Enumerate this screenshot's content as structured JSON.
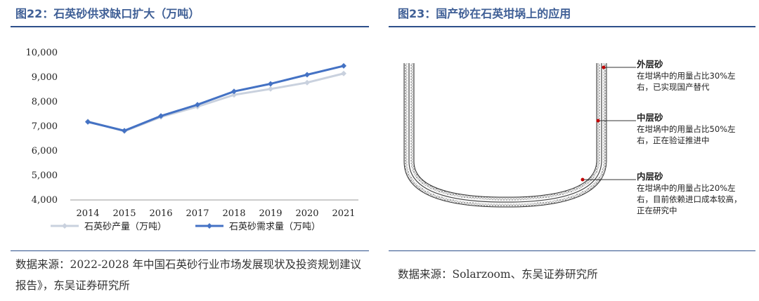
{
  "left": {
    "title": "图22：石英砂供求缺口扩大（万吨）",
    "source": "数据来源：2022-2028 年中国石英砂行业市场发展现状及投资规划建议报告》，东吴证券研究所"
  },
  "right": {
    "title": "图23：国产砂在石英坩埚上的应用",
    "source": "数据来源：Solarzoom、东吴证券研究所",
    "labels": [
      {
        "name": "外层砂",
        "desc": "在坩埚中的用量占比30%左右，已实现国产替代"
      },
      {
        "name": "中层砂",
        "desc": "在坩埚中的用量占比50%左右，正在验证推进中"
      },
      {
        "name": "内层砂",
        "desc": "在坩埚中的用量占比20%左右，目前依赖进口成本较高，正在研究中"
      }
    ]
  },
  "chart_data": {
    "type": "line",
    "categories": [
      "2014",
      "2015",
      "2016",
      "2017",
      "2018",
      "2019",
      "2020",
      "2021"
    ],
    "series": [
      {
        "name": "石英砂产量（万吨）",
        "values": [
          7200,
          6800,
          7380,
          7800,
          8280,
          8520,
          8780,
          9150
        ],
        "color": "#c9d1de"
      },
      {
        "name": "石英砂需求量（万吨）",
        "values": [
          7180,
          6820,
          7420,
          7880,
          8420,
          8730,
          9100,
          9460
        ],
        "color": "#4472c4"
      }
    ],
    "ylim": [
      4000,
      10000
    ],
    "yticks": [
      "4,000",
      "5,000",
      "6,000",
      "7,000",
      "8,000",
      "9,000",
      "10,000"
    ],
    "grid": false,
    "legend": "bottom"
  }
}
